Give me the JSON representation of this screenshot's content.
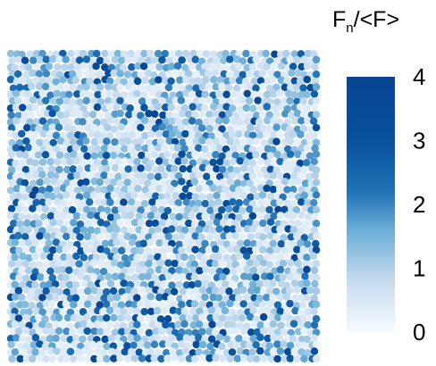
{
  "chart_data": {
    "type": "heatmap",
    "description_kind": "granular packing, particles colored by normalized contact force",
    "colorbar": {
      "title_main": "F",
      "title_sub": "n",
      "title_rest": "/<F>",
      "range": [
        0,
        4
      ],
      "ticks": [
        0,
        1,
        2,
        3,
        4
      ],
      "tick_labels": [
        "0",
        "1",
        "2",
        "3",
        "4"
      ],
      "colormap": [
        "#f7fbff",
        "#c6dbef",
        "#6baed6",
        "#2171b5",
        "#08519c",
        "#084594"
      ]
    },
    "particles": {
      "count_x": 46,
      "count_y": 46,
      "value_range": [
        0,
        4
      ],
      "typical_value": 1.2
    }
  }
}
